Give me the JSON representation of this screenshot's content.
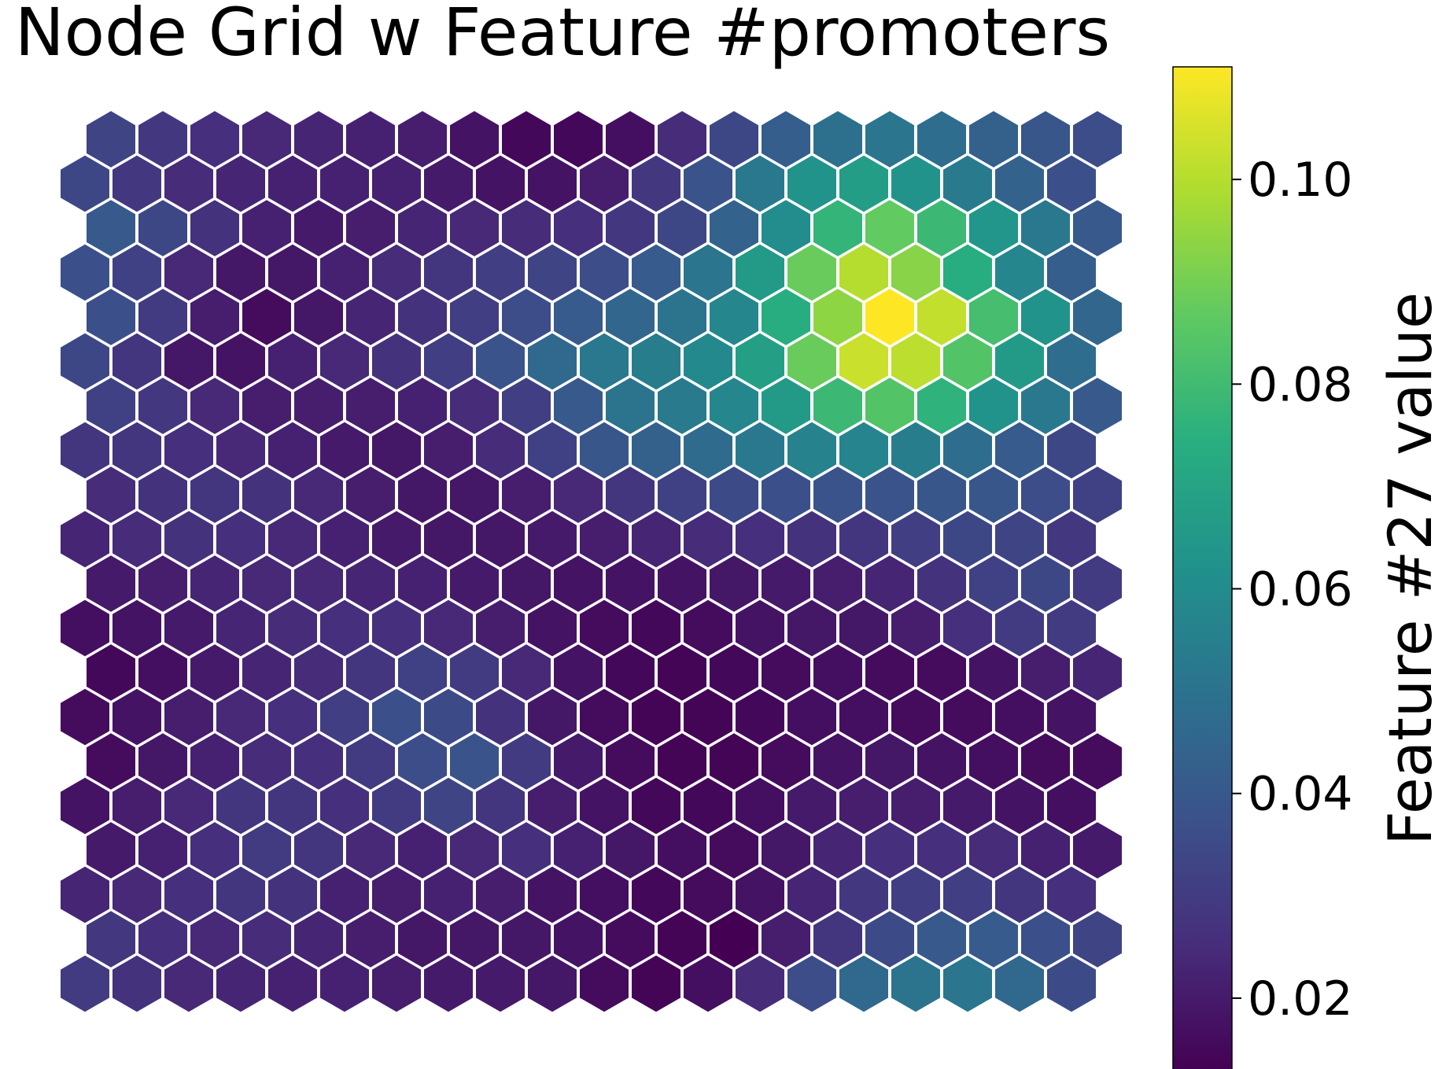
{
  "chart_data": {
    "type": "heatmap",
    "layout": "hexagonal",
    "title": "Node Grid w Feature #promoters",
    "rows": 20,
    "cols": 20,
    "colormap": "viridis",
    "colorbar": {
      "label": "Feature #27 value",
      "range": [
        0.013,
        0.111
      ],
      "ticks": [
        0.02,
        0.04,
        0.06,
        0.08,
        0.1
      ],
      "tick_labels": [
        "0.02",
        "0.04",
        "0.06",
        "0.08",
        "0.10"
      ]
    },
    "values": [
      [
        0.03,
        0.027,
        0.024,
        0.023,
        0.022,
        0.022,
        0.021,
        0.02,
        0.02,
        0.019,
        0.016,
        0.014,
        0.017,
        0.025,
        0.036,
        0.046,
        0.05,
        0.051,
        0.046,
        0.035
      ],
      [
        0.029,
        0.026,
        0.024,
        0.025,
        0.023,
        0.021,
        0.019,
        0.019,
        0.019,
        0.018,
        0.016,
        0.014,
        0.013,
        0.021,
        0.028,
        0.035,
        0.04,
        0.041,
        0.037,
        0.033
      ],
      [
        0.023,
        0.024,
        0.026,
        0.028,
        0.027,
        0.022,
        0.021,
        0.022,
        0.021,
        0.018,
        0.017,
        0.015,
        0.016,
        0.018,
        0.023,
        0.029,
        0.031,
        0.031,
        0.028,
        0.026
      ],
      [
        0.02,
        0.022,
        0.026,
        0.03,
        0.028,
        0.024,
        0.022,
        0.024,
        0.026,
        0.022,
        0.019,
        0.017,
        0.016,
        0.019,
        0.023,
        0.026,
        0.026,
        0.025,
        0.022,
        0.02
      ],
      [
        0.018,
        0.021,
        0.024,
        0.028,
        0.028,
        0.026,
        0.03,
        0.033,
        0.028,
        0.021,
        0.018,
        0.015,
        0.015,
        0.017,
        0.02,
        0.021,
        0.021,
        0.02,
        0.018,
        0.017
      ],
      [
        0.016,
        0.019,
        0.022,
        0.025,
        0.026,
        0.03,
        0.036,
        0.038,
        0.03,
        0.02,
        0.016,
        0.014,
        0.014,
        0.016,
        0.018,
        0.019,
        0.018,
        0.017,
        0.016,
        0.016
      ],
      [
        0.016,
        0.018,
        0.021,
        0.024,
        0.026,
        0.031,
        0.037,
        0.035,
        0.027,
        0.019,
        0.016,
        0.014,
        0.014,
        0.015,
        0.017,
        0.017,
        0.016,
        0.016,
        0.017,
        0.018
      ],
      [
        0.015,
        0.017,
        0.02,
        0.023,
        0.025,
        0.028,
        0.032,
        0.03,
        0.024,
        0.018,
        0.015,
        0.014,
        0.015,
        0.016,
        0.017,
        0.016,
        0.016,
        0.018,
        0.021,
        0.023
      ],
      [
        0.017,
        0.018,
        0.02,
        0.023,
        0.025,
        0.026,
        0.026,
        0.024,
        0.021,
        0.018,
        0.016,
        0.015,
        0.016,
        0.018,
        0.019,
        0.019,
        0.021,
        0.026,
        0.03,
        0.03
      ],
      [
        0.02,
        0.021,
        0.023,
        0.024,
        0.024,
        0.023,
        0.022,
        0.02,
        0.019,
        0.018,
        0.018,
        0.018,
        0.019,
        0.02,
        0.021,
        0.023,
        0.027,
        0.032,
        0.034,
        0.03
      ],
      [
        0.023,
        0.025,
        0.027,
        0.026,
        0.024,
        0.022,
        0.02,
        0.019,
        0.019,
        0.02,
        0.021,
        0.023,
        0.025,
        0.026,
        0.027,
        0.028,
        0.031,
        0.034,
        0.033,
        0.029
      ],
      [
        0.025,
        0.027,
        0.028,
        0.027,
        0.024,
        0.021,
        0.019,
        0.019,
        0.021,
        0.024,
        0.028,
        0.032,
        0.035,
        0.037,
        0.038,
        0.038,
        0.039,
        0.039,
        0.036,
        0.032
      ],
      [
        0.028,
        0.028,
        0.026,
        0.024,
        0.022,
        0.02,
        0.019,
        0.021,
        0.025,
        0.032,
        0.039,
        0.043,
        0.047,
        0.052,
        0.056,
        0.057,
        0.054,
        0.048,
        0.041,
        0.034
      ],
      [
        0.032,
        0.029,
        0.024,
        0.021,
        0.021,
        0.021,
        0.022,
        0.025,
        0.031,
        0.04,
        0.05,
        0.053,
        0.058,
        0.066,
        0.079,
        0.084,
        0.076,
        0.063,
        0.052,
        0.04
      ],
      [
        0.034,
        0.028,
        0.019,
        0.018,
        0.022,
        0.024,
        0.027,
        0.031,
        0.038,
        0.046,
        0.052,
        0.054,
        0.059,
        0.068,
        0.088,
        0.103,
        0.101,
        0.084,
        0.066,
        0.048
      ],
      [
        0.037,
        0.03,
        0.021,
        0.016,
        0.019,
        0.023,
        0.027,
        0.031,
        0.036,
        0.041,
        0.045,
        0.05,
        0.058,
        0.074,
        0.094,
        0.111,
        0.102,
        0.081,
        0.063,
        0.045
      ],
      [
        0.037,
        0.032,
        0.024,
        0.019,
        0.019,
        0.022,
        0.025,
        0.028,
        0.031,
        0.033,
        0.036,
        0.041,
        0.051,
        0.066,
        0.088,
        0.1,
        0.093,
        0.074,
        0.058,
        0.042
      ],
      [
        0.04,
        0.034,
        0.027,
        0.022,
        0.02,
        0.021,
        0.023,
        0.024,
        0.025,
        0.026,
        0.029,
        0.034,
        0.044,
        0.06,
        0.077,
        0.087,
        0.079,
        0.064,
        0.052,
        0.04
      ],
      [
        0.034,
        0.029,
        0.025,
        0.023,
        0.022,
        0.022,
        0.022,
        0.02,
        0.018,
        0.018,
        0.021,
        0.029,
        0.038,
        0.052,
        0.063,
        0.067,
        0.063,
        0.053,
        0.044,
        0.037
      ],
      [
        0.033,
        0.029,
        0.026,
        0.024,
        0.023,
        0.022,
        0.021,
        0.018,
        0.015,
        0.015,
        0.017,
        0.025,
        0.034,
        0.042,
        0.049,
        0.051,
        0.048,
        0.043,
        0.039,
        0.036
      ]
    ]
  }
}
